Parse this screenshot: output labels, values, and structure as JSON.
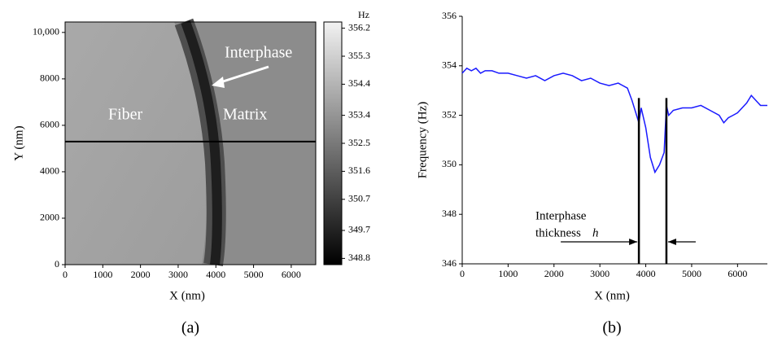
{
  "chart_data": [
    {
      "type": "heatmap",
      "xlabel": "X (nm)",
      "ylabel": "Y (nm)",
      "xlim": [
        0,
        6650
      ],
      "xticks": [
        0,
        1000,
        2000,
        3000,
        4000,
        5000,
        6000
      ],
      "ylim": [
        0,
        10450
      ],
      "yticks": [
        0,
        2000,
        4000,
        6000,
        8000,
        {
          "value": 10000,
          "label": "10,000"
        }
      ],
      "colorbar_unit": "Hz",
      "clim": [
        348.6,
        356.4
      ],
      "cticks": [
        356.2,
        355.3,
        354.4,
        353.4,
        352.5,
        351.6,
        350.7,
        349.7,
        348.8
      ],
      "profile_y": 5300,
      "labels": {
        "fiber": "Fiber",
        "matrix": "Matrix",
        "interphase": "Interphase"
      },
      "caption": "(a)"
    },
    {
      "type": "line",
      "xlabel": "X (nm)",
      "ylabel": "Frequency (Hz)",
      "xlim": [
        0,
        6650
      ],
      "xticks": [
        0,
        1000,
        2000,
        3000,
        4000,
        5000,
        6000
      ],
      "ylim": [
        346,
        356
      ],
      "yticks": [
        346,
        348,
        350,
        352,
        354,
        356
      ],
      "x": [
        0,
        100,
        200,
        300,
        400,
        500,
        650,
        800,
        1000,
        1200,
        1400,
        1600,
        1800,
        2000,
        2200,
        2400,
        2600,
        2800,
        3000,
        3200,
        3400,
        3600,
        3700,
        3800,
        3850,
        3900,
        4000,
        4100,
        4200,
        4300,
        4400,
        4450,
        4500,
        4600,
        4800,
        5000,
        5200,
        5400,
        5600,
        5700,
        5800,
        5900,
        6000,
        6200,
        6300,
        6400,
        6500,
        6650
      ],
      "series": [
        {
          "color": "#1a1aff",
          "values": [
            353.7,
            353.9,
            353.8,
            353.9,
            353.7,
            353.8,
            353.8,
            353.7,
            353.7,
            353.6,
            353.5,
            353.6,
            353.4,
            353.6,
            353.7,
            353.6,
            353.4,
            353.5,
            353.3,
            353.2,
            353.3,
            353.1,
            352.6,
            352.0,
            351.7,
            352.3,
            351.5,
            350.3,
            349.7,
            350.0,
            350.5,
            352.4,
            352.0,
            352.2,
            352.3,
            352.3,
            352.4,
            352.2,
            352.0,
            351.7,
            351.9,
            352.0,
            352.1,
            352.5,
            352.8,
            352.6,
            352.4,
            352.4
          ]
        }
      ],
      "interphase_bounds": [
        3850,
        4450
      ],
      "bound_top": 352.7,
      "annotation": {
        "line1": "Interphase",
        "line2": "thickness",
        "symbol": "h"
      },
      "caption": "(b)"
    }
  ]
}
